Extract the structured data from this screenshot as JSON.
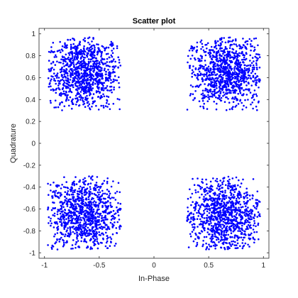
{
  "chart_data": {
    "type": "scatter",
    "title": "Scatter plot",
    "xlabel": "In-Phase",
    "ylabel": "Quadrature",
    "xlim": [
      -1.05,
      1.05
    ],
    "ylim": [
      -1.05,
      1.05
    ],
    "grid": false,
    "legend": "none",
    "x_ticks": [
      -1,
      -0.5,
      0,
      0.5,
      1
    ],
    "x_tick_labels": [
      "-1",
      "-0.5",
      "0",
      "0.5",
      "1"
    ],
    "y_ticks": [
      -1,
      -0.8,
      -0.6,
      -0.4,
      -0.2,
      0,
      0.2,
      0.4,
      0.6,
      0.8,
      1
    ],
    "y_tick_labels": [
      "-1",
      "-0.8",
      "-0.6",
      "-0.4",
      "-0.2",
      "0",
      "0.2",
      "0.4",
      "0.6",
      "0.8",
      "1"
    ],
    "marker_color": "#0000ff",
    "clusters": [
      {
        "center": [
          -0.65,
          0.65
        ],
        "x_range": [
          -0.97,
          -0.3
        ],
        "y_range": [
          0.3,
          0.97
        ],
        "approx_points": 1000
      },
      {
        "center": [
          0.65,
          0.65
        ],
        "x_range": [
          0.3,
          0.97
        ],
        "y_range": [
          0.3,
          0.97
        ],
        "approx_points": 1000
      },
      {
        "center": [
          -0.65,
          -0.65
        ],
        "x_range": [
          -0.97,
          -0.3
        ],
        "y_range": [
          -0.97,
          -0.3
        ],
        "approx_points": 1000
      },
      {
        "center": [
          0.65,
          -0.65
        ],
        "x_range": [
          0.3,
          0.97
        ],
        "y_range": [
          -0.97,
          -0.3
        ],
        "approx_points": 1000
      }
    ]
  }
}
